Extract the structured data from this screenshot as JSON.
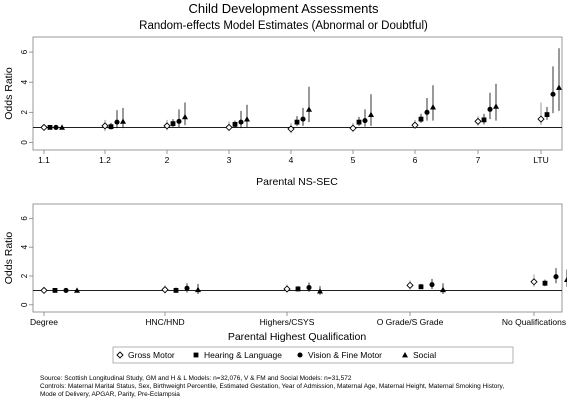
{
  "chart_data": [
    {
      "type": "scatter",
      "title": "Child Development Assessments",
      "subtitle": "Random-effects Model Estimates (Abnormal or Doubtful)",
      "xlabel": "Parental NS-SEC",
      "ylabel": "Odds Ratio",
      "ylim": [
        -0.5,
        7
      ],
      "yticks": [
        0,
        2,
        4,
        6
      ],
      "reference_line": 1,
      "grid": false,
      "categories": [
        "1.1",
        "1.2",
        "2",
        "3",
        "4",
        "5",
        "6",
        "7",
        "LTU"
      ],
      "series": [
        {
          "name": "Gross Motor",
          "values": [
            1,
            1.1,
            1.1,
            1.0,
            0.9,
            0.95,
            1.15,
            1.4,
            1.55
          ],
          "ci_low": [
            null,
            0.75,
            0.8,
            0.75,
            0.6,
            0.7,
            0.9,
            1.1,
            1.15
          ],
          "ci_high": [
            null,
            1.5,
            1.5,
            1.4,
            1.3,
            1.3,
            1.5,
            1.75,
            2.65
          ]
        },
        {
          "name": "Hearing & Language",
          "values": [
            1,
            1.05,
            1.25,
            1.2,
            1.35,
            1.35,
            1.55,
            1.5,
            1.85
          ],
          "ci_low": [
            null,
            0.85,
            1.0,
            1.0,
            1.1,
            1.1,
            1.3,
            1.2,
            1.5
          ],
          "ci_high": [
            null,
            1.3,
            1.55,
            1.45,
            1.75,
            1.7,
            1.9,
            1.9,
            2.35
          ]
        },
        {
          "name": "Vision & Fine Motor",
          "values": [
            1,
            1.35,
            1.4,
            1.35,
            1.55,
            1.45,
            2.0,
            2.2,
            3.2
          ],
          "ci_low": [
            null,
            0.95,
            1.0,
            0.95,
            1.1,
            1.05,
            1.45,
            1.55,
            1.95
          ],
          "ci_high": [
            null,
            2.15,
            2.2,
            2.1,
            2.3,
            2.2,
            2.95,
            3.3,
            5.05
          ]
        },
        {
          "name": "Social",
          "values": [
            1,
            1.4,
            1.7,
            1.55,
            2.2,
            1.85,
            2.35,
            2.4,
            3.65
          ],
          "ci_low": [
            null,
            0.95,
            1.15,
            1.0,
            1.35,
            1.1,
            1.45,
            1.45,
            2.1
          ],
          "ci_high": [
            null,
            2.3,
            2.65,
            2.5,
            3.7,
            3.2,
            3.8,
            3.9,
            6.25
          ]
        }
      ]
    },
    {
      "type": "scatter",
      "xlabel": "Parental Highest Qualification",
      "ylabel": "Odds Ratio",
      "ylim": [
        -0.5,
        7
      ],
      "yticks": [
        0,
        2,
        4,
        6
      ],
      "reference_line": 1,
      "grid": false,
      "categories": [
        "Degree",
        "HNC/HND",
        "Highers/CSYS",
        "O Grade/S Grade",
        "No Qualifications"
      ],
      "series": [
        {
          "name": "Gross Motor",
          "values": [
            1,
            1.05,
            1.1,
            1.35,
            1.6
          ],
          "ci_low": [
            null,
            0.8,
            0.85,
            1.05,
            1.25
          ],
          "ci_high": [
            null,
            1.35,
            1.4,
            1.7,
            2.1
          ]
        },
        {
          "name": "Hearing & Language",
          "values": [
            1,
            1.0,
            1.1,
            1.25,
            1.5
          ],
          "ci_low": [
            null,
            0.85,
            0.95,
            1.1,
            1.3
          ],
          "ci_high": [
            null,
            1.2,
            1.3,
            1.45,
            1.75
          ]
        },
        {
          "name": "Vision & Fine Motor",
          "values": [
            1,
            1.15,
            1.2,
            1.4,
            1.95
          ],
          "ci_low": [
            null,
            0.85,
            0.9,
            1.1,
            1.5
          ],
          "ci_high": [
            null,
            1.5,
            1.55,
            1.8,
            2.55
          ]
        },
        {
          "name": "Social",
          "values": [
            1,
            1.05,
            0.95,
            1.05,
            1.75
          ],
          "ci_low": [
            null,
            0.75,
            0.7,
            0.75,
            1.25
          ],
          "ci_high": [
            null,
            1.45,
            1.3,
            1.5,
            2.45
          ]
        }
      ]
    }
  ],
  "legend": {
    "placement": "bottom",
    "items": [
      {
        "label": "Gross Motor",
        "marker": "diamond-open"
      },
      {
        "label": "Hearing & Language",
        "marker": "square"
      },
      {
        "label": "Vision & Fine Motor",
        "marker": "circle"
      },
      {
        "label": "Social",
        "marker": "triangle"
      }
    ]
  },
  "notes": {
    "source": "Source: Scottish Longitudinal Study, GM and H & L Models: n=32,076, V & FM and Social Models: n=31,572",
    "controls_1": "Controls: Maternal Marital Status, Sex, Birthweight Percentile, Estimated Gestation, Year of Admission, Maternal Age, Maternal Height, Maternal Smoking History,",
    "controls_2": "Mode of Delivery, APGAR, Parity, Pre-Eclampsia"
  },
  "colors": {
    "frame": "#808080",
    "marker": "#000000",
    "ci_open": "#808080",
    "ci_filled": "#000000"
  }
}
